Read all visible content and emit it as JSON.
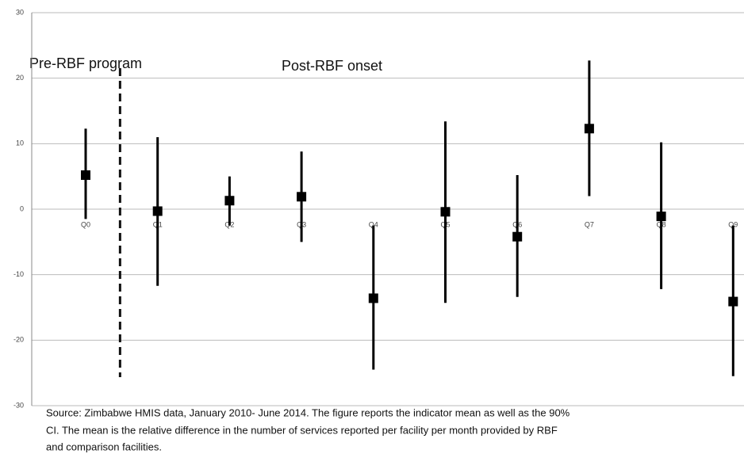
{
  "chart_data": {
    "type": "errorbar",
    "annotations": [
      "Pre-RBF program",
      "Post-RBF onset"
    ],
    "note": [
      "Source: Zimbabwe HMIS data, January 2010- June 2014. The figure reports the indicator mean as well as the 90%",
      "CI. The mean is the relative difference in the number of services reported per facility per month provided by RBF",
      "and comparison facilities."
    ],
    "categories": [
      "Q0",
      "Q1",
      "Q2",
      "Q3",
      "Q4",
      "Q5",
      "Q6",
      "Q7",
      "Q8",
      "Q9"
    ],
    "values": [
      5.2,
      -0.3,
      1.3,
      1.9,
      -13.6,
      -0.4,
      -4.2,
      12.3,
      -1.1,
      -14.1
    ],
    "ci_low": [
      -1.5,
      -11.7,
      -2.5,
      -5,
      -24.5,
      -14.3,
      -13.4,
      2,
      -12.2,
      -25.5
    ],
    "ci_high": [
      12.3,
      11,
      5,
      8.8,
      -2.5,
      13.4,
      5.2,
      22.7,
      10.2,
      -2.5
    ],
    "color": "#000000",
    "ylim": [
      -30,
      30
    ],
    "yticks": [
      -30,
      -20,
      -10,
      0,
      10,
      20,
      30
    ],
    "grid": true
  }
}
